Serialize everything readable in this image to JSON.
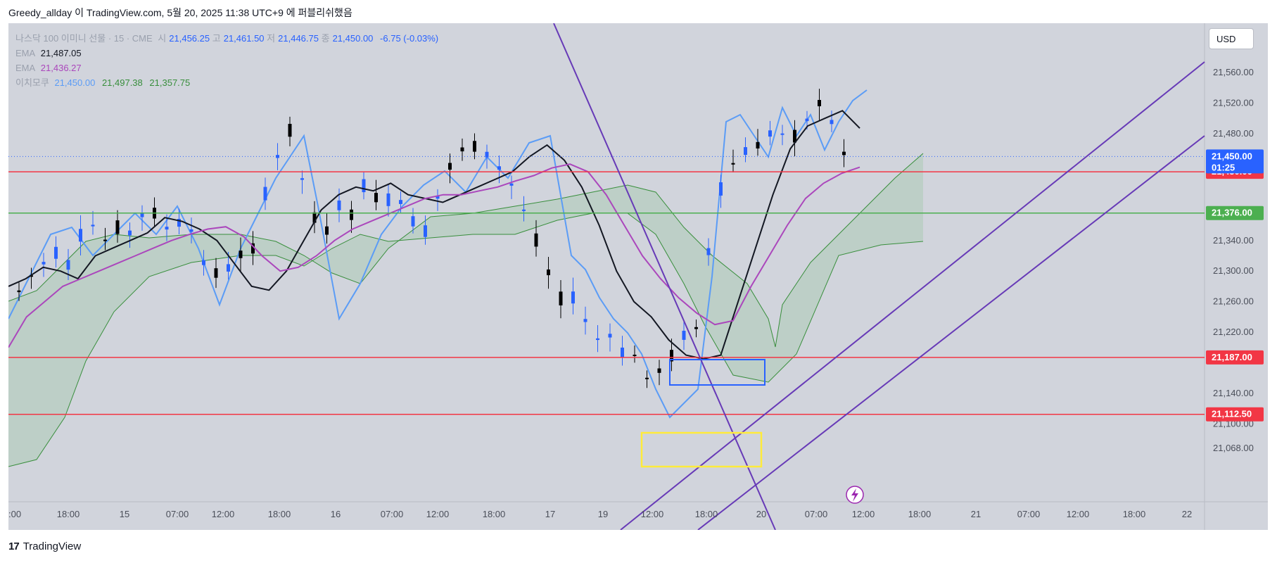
{
  "header": {
    "text": "Greedy_allday 이 TradingView.com, 5월 20, 2025 11:38 UTC+9 에 퍼블리쉬했음"
  },
  "legend": {
    "symbol_line": "나스닥 100 이미니 선물 · 15 · CME",
    "o_label": "시",
    "o_value": "21,456.25",
    "h_label": "고",
    "h_value": "21,461.50",
    "l_label": "저",
    "l_value": "21,446.75",
    "c_label": "종",
    "c_value": "21,450.00",
    "change": "-6.75 (-0.03%)",
    "ema1_label": "EMA",
    "ema1_value": "21,487.05",
    "ema2_label": "EMA",
    "ema2_value": "21,436.27",
    "ichimoku_label": "이치모쿠",
    "ichimoku_v1": "21,450.00",
    "ichimoku_v2": "21,497.38",
    "ichimoku_v3": "21,357.75"
  },
  "currency_button": "USD",
  "footer": {
    "logo": "17",
    "brand": "TradingView"
  },
  "colors": {
    "background": "#d1d4dc",
    "support_resistance": "#f23645",
    "level_green": "#4caf50",
    "ema_fast": "#131722",
    "ema_slow": "#ab47bc",
    "ichimoku_lagging": "#5b9cf6",
    "cloud_line": "#388e3c",
    "trendline": "#673ab7",
    "blue_box": "#2962ff",
    "yellow_box": "#ffeb3b",
    "price_tag": "#2962ff",
    "up_candle": "#000000",
    "down_candle": "#2962ff"
  },
  "chart_data": {
    "type": "line",
    "title": "나스닥 100 이미니 선물 · 15 · CME",
    "x_tick_labels": [
      ":00",
      "18:00",
      "15",
      "07:00",
      "12:00",
      "18:00",
      "16",
      "07:00",
      "12:00",
      "18:00",
      "17",
      "19",
      "12:00",
      "18:00",
      "20",
      "07:00",
      "12:00",
      "18:00",
      "21",
      "07:00",
      "12:00",
      "18:00",
      "22"
    ],
    "y_tick_labels": [
      "21,560.00",
      "21,520.00",
      "21,480.00",
      "21,340.00",
      "21,300.00",
      "21,260.00",
      "21,220.00",
      "21,140.00",
      "21,100.00",
      "21,068.00"
    ],
    "ylim": [
      21040,
      21600
    ],
    "horizontal_levels": [
      {
        "label": "21,430.00",
        "value": 21430,
        "color": "#f23645"
      },
      {
        "label": "21,376.00",
        "value": 21376,
        "color": "#4caf50"
      },
      {
        "label": "21,187.00",
        "value": 21187,
        "color": "#f23645"
      },
      {
        "label": "21,112.50",
        "value": 21112.5,
        "color": "#f23645"
      }
    ],
    "last_price": {
      "label": "21,450.00",
      "countdown": "01:25",
      "value": 21450
    },
    "series": [
      {
        "name": "EMA",
        "values": [
          21280,
          21290,
          21305,
          21300,
          21290,
          21320,
          21330,
          21340,
          21350,
          21370,
          21365,
          21355,
          21340,
          21310,
          21280,
          21275,
          21300,
          21340,
          21380,
          21400,
          21410,
          21405,
          21415,
          21400,
          21395,
          21390,
          21400,
          21410,
          21420,
          21430,
          21450,
          21465,
          21445,
          21410,
          21360,
          21300,
          21260,
          21240,
          21210,
          21190,
          21185,
          21190,
          21260,
          21330,
          21400,
          21460,
          21490,
          21500,
          21510,
          21487
        ]
      },
      {
        "name": "EMA",
        "values": [
          21200,
          21240,
          21260,
          21280,
          21290,
          21300,
          21310,
          21320,
          21330,
          21340,
          21348,
          21355,
          21358,
          21345,
          21320,
          21300,
          21305,
          21320,
          21340,
          21355,
          21365,
          21375,
          21385,
          21395,
          21400,
          21400,
          21405,
          21410,
          21418,
          21425,
          21435,
          21440,
          21430,
          21400,
          21360,
          21320,
          21290,
          21265,
          21245,
          21230,
          21235,
          21280,
          21320,
          21360,
          21395,
          21415,
          21428,
          21436
        ]
      }
    ]
  }
}
